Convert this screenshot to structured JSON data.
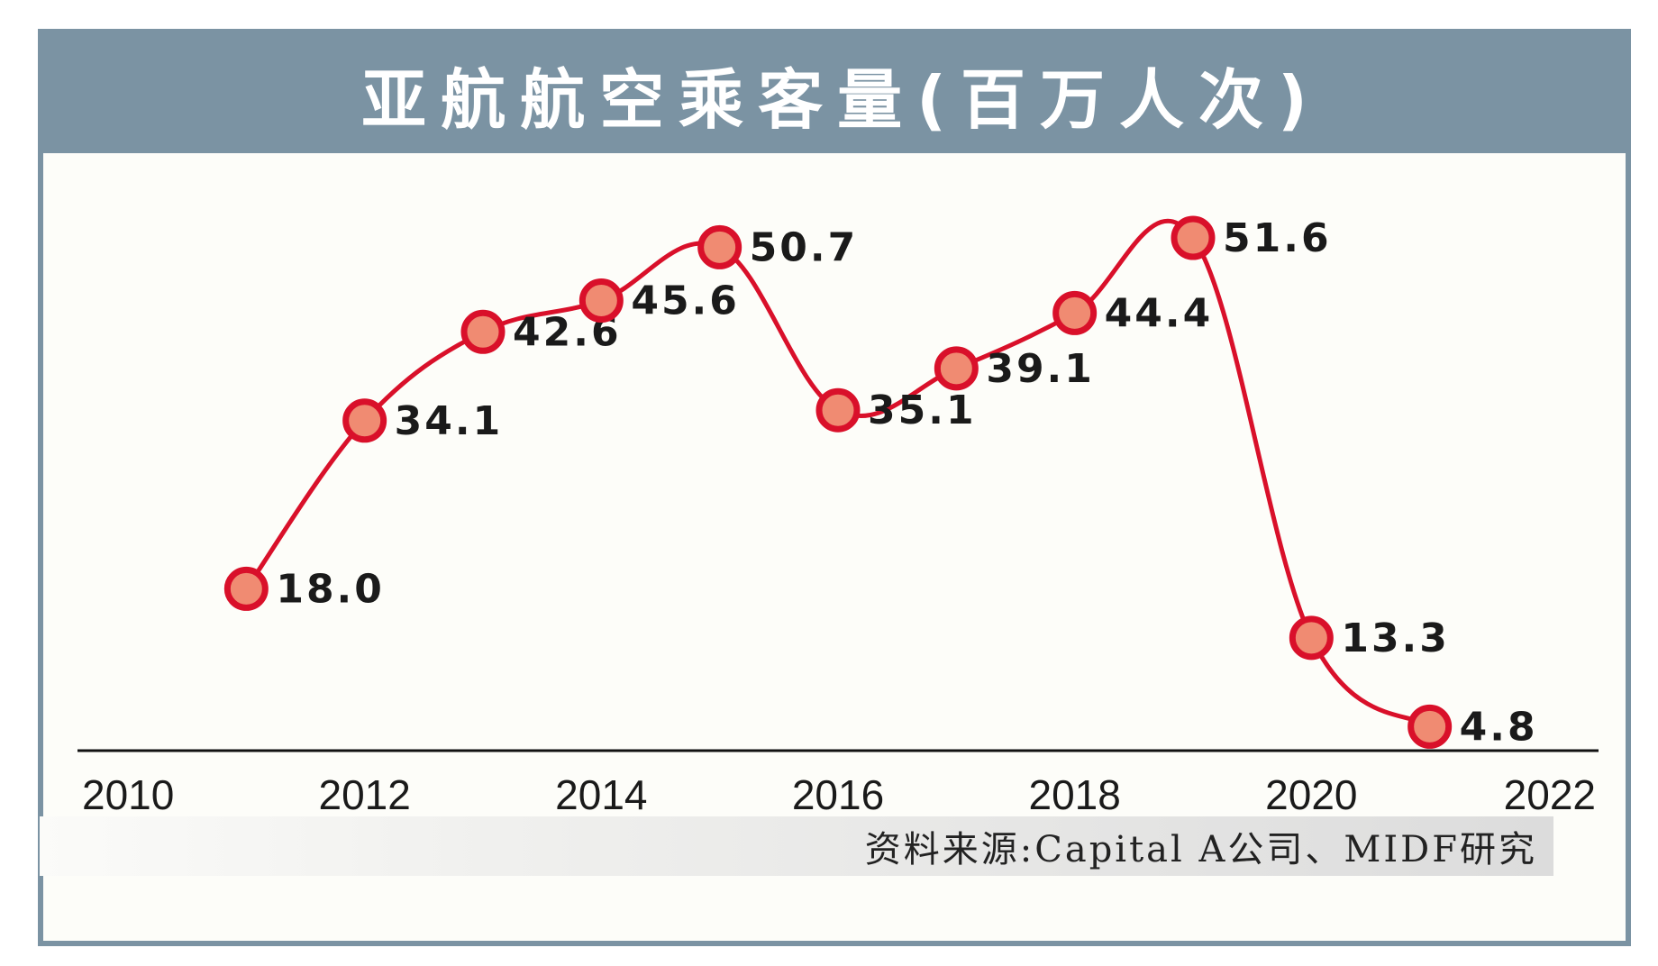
{
  "chart_data": {
    "type": "line",
    "title": "亚航航空乘客量(百万人次)",
    "x_ticks": [
      "2010",
      "2012",
      "2014",
      "2016",
      "2018",
      "2020",
      "2022"
    ],
    "x": [
      2011,
      2012,
      2013,
      2014,
      2015,
      2016,
      2017,
      2018,
      2019,
      2020,
      2021
    ],
    "values": [
      18.0,
      34.1,
      42.6,
      45.6,
      50.7,
      35.1,
      39.1,
      44.4,
      51.6,
      13.3,
      4.8
    ],
    "value_labels": [
      "18.0",
      "34.1",
      "42.6",
      "45.6",
      "50.7",
      "35.1",
      "39.1",
      "44.4",
      "51.6",
      "13.3",
      "4.8"
    ],
    "xlim": [
      2010,
      2022
    ],
    "ylim": [
      0,
      56
    ],
    "line_color": "#d9102a",
    "marker_fill": "#f08b72",
    "grid": false,
    "legend": "none",
    "source": "资料来源:Capital A公司、MIDF研究"
  },
  "colors": {
    "header_bg": "#7b93a3",
    "plot_bg": "#fdfdf9"
  }
}
